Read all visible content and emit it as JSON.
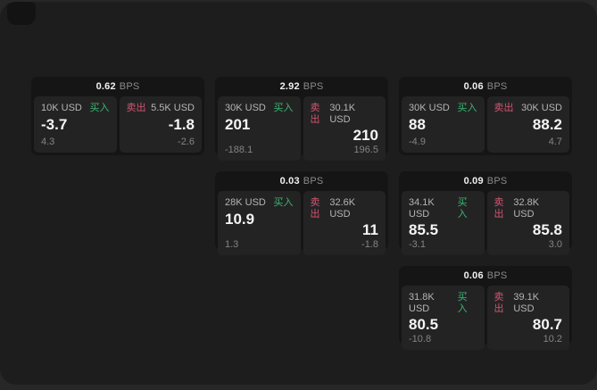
{
  "labels": {
    "bps": "BPS",
    "buy": "买入",
    "sell": "卖出"
  },
  "colors": {
    "buy_green": "#36b873",
    "sell_red": "#d15570",
    "window_bg": "#1e1d1e",
    "card_bg": "#161516",
    "panel_bg": "#242324"
  },
  "cards": [
    {
      "bps": "0.62",
      "buy": {
        "amount": "10K USD",
        "price": "-3.7",
        "delta": "4.3"
      },
      "sell": {
        "amount": "5.5K USD",
        "price": "-1.8",
        "delta": "-2.6"
      }
    },
    {
      "bps": "2.92",
      "buy": {
        "amount": "30K USD",
        "price": "201",
        "delta": "-188.1"
      },
      "sell": {
        "amount": "30.1K USD",
        "price": "210",
        "delta": "196.5"
      }
    },
    {
      "bps": "0.06",
      "buy": {
        "amount": "30K USD",
        "price": "88",
        "delta": "-4.9"
      },
      "sell": {
        "amount": "30K USD",
        "price": "88.2",
        "delta": "4.7"
      }
    },
    {
      "bps": "0.03",
      "buy": {
        "amount": "28K USD",
        "price": "10.9",
        "delta": "1.3"
      },
      "sell": {
        "amount": "32.6K USD",
        "price": "11",
        "delta": "-1.8"
      }
    },
    {
      "bps": "0.09",
      "buy": {
        "amount": "34.1K USD",
        "price": "85.5",
        "delta": "-3.1"
      },
      "sell": {
        "amount": "32.8K USD",
        "price": "85.8",
        "delta": "3.0"
      }
    },
    {
      "bps": "0.06",
      "buy": {
        "amount": "31.8K USD",
        "price": "80.5",
        "delta": "-10.8"
      },
      "sell": {
        "amount": "39.1K USD",
        "price": "80.7",
        "delta": "10.2"
      }
    }
  ]
}
